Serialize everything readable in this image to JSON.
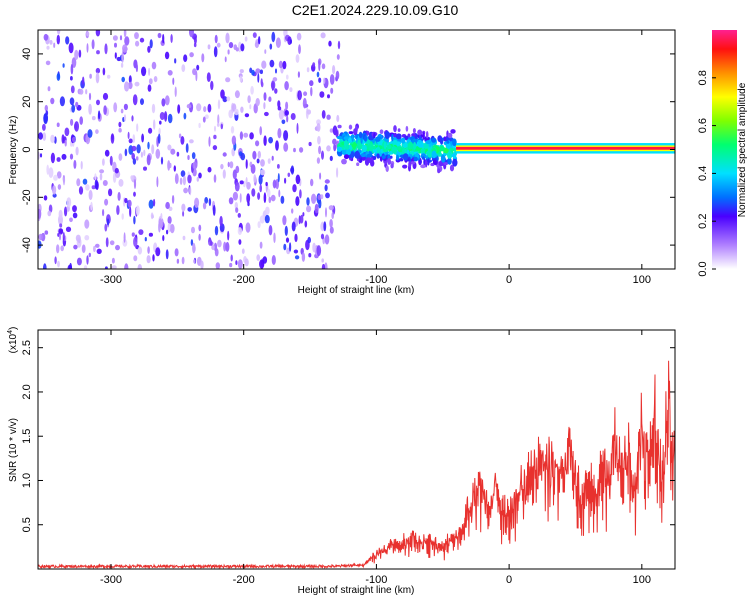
{
  "title": "C2E1.2024.229.10.09.G10",
  "colors": {
    "snr_line": "#e8312e",
    "background": "#ffffff",
    "frame": "#000000"
  },
  "chart_data": [
    {
      "type": "heatmap",
      "xlabel": "Height of straight line (km)",
      "ylabel": "Frequency (Hz)",
      "xlim": [
        -355,
        125
      ],
      "ylim": [
        -50,
        50
      ],
      "x_ticks": [
        "-300",
        "-200",
        "-100",
        "0",
        "100"
      ],
      "x_tick_values": [
        -300,
        -200,
        -100,
        0,
        100
      ],
      "y_ticks": [
        "40",
        "20",
        "0",
        "-20",
        "-40"
      ],
      "y_tick_values": [
        40,
        20,
        0,
        -20,
        -40
      ],
      "colorbar": {
        "label": "Normalized spectral amplitude",
        "ticks": [
          "0.0",
          "0.2",
          "0.4",
          "0.6",
          "0.8"
        ],
        "tick_values": [
          0.0,
          0.2,
          0.4,
          0.6,
          0.8
        ],
        "range": [
          0,
          1
        ]
      },
      "regions": [
        {
          "x_from": -355,
          "x_to": -128,
          "freq_from": -50,
          "freq_to": 50,
          "amplitude": 0.1,
          "description": "noise"
        },
        {
          "x_from": -128,
          "x_to": -40,
          "freq_center": 2,
          "freq_spread": 10,
          "amplitude": 0.4
        },
        {
          "x_from": -40,
          "x_to": 125,
          "freq_center": 0.5,
          "freq_spread": 3,
          "amplitude": 0.95
        }
      ]
    },
    {
      "type": "line",
      "xlabel": "Height of straight line (km)",
      "ylabel": "SNR (10 * v/v)",
      "y_scale_label": "(x10",
      "y_scale_exp": "4",
      "xlim": [
        -355,
        125
      ],
      "ylim": [
        0,
        27000
      ],
      "x_ticks": [
        "-300",
        "-200",
        "-100",
        "0",
        "100"
      ],
      "x_tick_values": [
        -300,
        -200,
        -100,
        0,
        100
      ],
      "y_ticks": [
        "2.5",
        "2.0",
        "1.5",
        "1.0",
        "0.5"
      ],
      "y_tick_values": [
        25000,
        20000,
        15000,
        10000,
        5000
      ],
      "series": [
        {
          "x": [
            -355,
            -300,
            -200,
            -130,
            -110,
            -100,
            -90,
            -80,
            -70,
            -60,
            -50,
            -40,
            -35,
            -30,
            -20,
            -15,
            -10,
            -5,
            0,
            10,
            20,
            30,
            40,
            45,
            50,
            55,
            60,
            65,
            70,
            75,
            80,
            85,
            90,
            95,
            100,
            105,
            110,
            115,
            120,
            125
          ],
          "values": [
            300,
            300,
            300,
            300,
            500,
            2000,
            3000,
            3500,
            4000,
            3500,
            3000,
            4500,
            6000,
            8000,
            11000,
            7000,
            10000,
            8000,
            7000,
            11000,
            13000,
            13500,
            12500,
            16000,
            13000,
            10000,
            12000,
            9000,
            14000,
            11000,
            17000,
            12000,
            16000,
            10000,
            18000,
            14000,
            21000,
            12000,
            22000,
            14000
          ]
        }
      ]
    }
  ]
}
